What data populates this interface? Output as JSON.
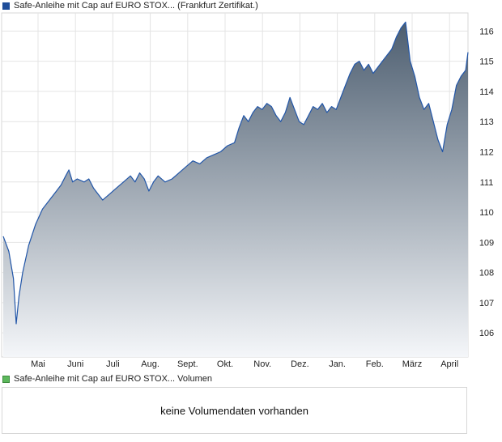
{
  "legend_top": {
    "label": "Safe-Anleihe mit Cap auf EURO STOX... (Frankfurt Zertifikat.)",
    "color": "#1f4e9a"
  },
  "legend_bottom": {
    "label": "Safe-Anleihe mit Cap auf EURO STOX... Volumen",
    "color": "#5cb85c"
  },
  "volume_message": "keine Volumendaten vorhanden",
  "colors": {
    "line": "#2256a8",
    "fill_top": "#4d5e70",
    "fill_bottom": "#f4f6f9",
    "grid": "#e4e4e4",
    "border": "#d7d7d7"
  },
  "chart_data": {
    "type": "area",
    "title": "",
    "xlabel": "",
    "ylabel": "",
    "ylim": [
      105.2,
      116.6
    ],
    "y_ticks": [
      106,
      107,
      108,
      109,
      110,
      111,
      112,
      113,
      114,
      115,
      116
    ],
    "x_ticks": [
      "Mai",
      "Juni",
      "Juli",
      "Aug.",
      "Sept.",
      "Okt.",
      "Nov.",
      "Dez.",
      "Jan.",
      "Feb.",
      "März",
      "April"
    ],
    "grid": true,
    "series": [
      {
        "name": "",
        "points": [
          [
            0,
            109.2
          ],
          [
            0.12,
            108.7
          ],
          [
            0.22,
            107.8
          ],
          [
            0.28,
            106.3
          ],
          [
            0.34,
            107.2
          ],
          [
            0.42,
            108.0
          ],
          [
            0.55,
            108.9
          ],
          [
            0.7,
            109.6
          ],
          [
            0.85,
            110.1
          ],
          [
            1.0,
            110.4
          ],
          [
            1.15,
            110.7
          ],
          [
            1.25,
            110.9
          ],
          [
            1.35,
            111.2
          ],
          [
            1.42,
            111.4
          ],
          [
            1.5,
            111.0
          ],
          [
            1.6,
            111.1
          ],
          [
            1.75,
            111.0
          ],
          [
            1.85,
            111.1
          ],
          [
            1.95,
            110.8
          ],
          [
            2.05,
            110.6
          ],
          [
            2.15,
            110.4
          ],
          [
            2.3,
            110.6
          ],
          [
            2.45,
            110.8
          ],
          [
            2.6,
            111.0
          ],
          [
            2.75,
            111.2
          ],
          [
            2.85,
            111.0
          ],
          [
            2.95,
            111.3
          ],
          [
            3.05,
            111.1
          ],
          [
            3.15,
            110.7
          ],
          [
            3.25,
            111.0
          ],
          [
            3.35,
            111.2
          ],
          [
            3.5,
            111.0
          ],
          [
            3.65,
            111.1
          ],
          [
            3.8,
            111.3
          ],
          [
            3.95,
            111.5
          ],
          [
            4.1,
            111.7
          ],
          [
            4.25,
            111.6
          ],
          [
            4.4,
            111.8
          ],
          [
            4.55,
            111.9
          ],
          [
            4.7,
            112.0
          ],
          [
            4.85,
            112.2
          ],
          [
            5.0,
            112.3
          ],
          [
            5.1,
            112.8
          ],
          [
            5.2,
            113.2
          ],
          [
            5.3,
            113.0
          ],
          [
            5.4,
            113.3
          ],
          [
            5.5,
            113.5
          ],
          [
            5.6,
            113.4
          ],
          [
            5.7,
            113.6
          ],
          [
            5.8,
            113.5
          ],
          [
            5.9,
            113.2
          ],
          [
            6.0,
            113.0
          ],
          [
            6.1,
            113.3
          ],
          [
            6.2,
            113.8
          ],
          [
            6.3,
            113.4
          ],
          [
            6.4,
            113.0
          ],
          [
            6.5,
            112.9
          ],
          [
            6.6,
            113.2
          ],
          [
            6.7,
            113.5
          ],
          [
            6.8,
            113.4
          ],
          [
            6.9,
            113.6
          ],
          [
            7.0,
            113.3
          ],
          [
            7.1,
            113.5
          ],
          [
            7.2,
            113.4
          ],
          [
            7.3,
            113.8
          ],
          [
            7.4,
            114.2
          ],
          [
            7.5,
            114.6
          ],
          [
            7.6,
            114.9
          ],
          [
            7.7,
            115.0
          ],
          [
            7.8,
            114.7
          ],
          [
            7.9,
            114.9
          ],
          [
            8.0,
            114.6
          ],
          [
            8.1,
            114.8
          ],
          [
            8.2,
            115.0
          ],
          [
            8.3,
            115.2
          ],
          [
            8.4,
            115.4
          ],
          [
            8.5,
            115.8
          ],
          [
            8.6,
            116.1
          ],
          [
            8.7,
            116.3
          ],
          [
            8.8,
            115.0
          ],
          [
            8.9,
            114.5
          ],
          [
            9.0,
            113.8
          ],
          [
            9.1,
            113.4
          ],
          [
            9.2,
            113.6
          ],
          [
            9.3,
            113.0
          ],
          [
            9.4,
            112.4
          ],
          [
            9.5,
            112.0
          ],
          [
            9.6,
            112.9
          ],
          [
            9.7,
            113.4
          ],
          [
            9.8,
            114.2
          ],
          [
            9.9,
            114.5
          ],
          [
            10.0,
            114.7
          ],
          [
            10.05,
            115.3
          ]
        ]
      }
    ]
  }
}
